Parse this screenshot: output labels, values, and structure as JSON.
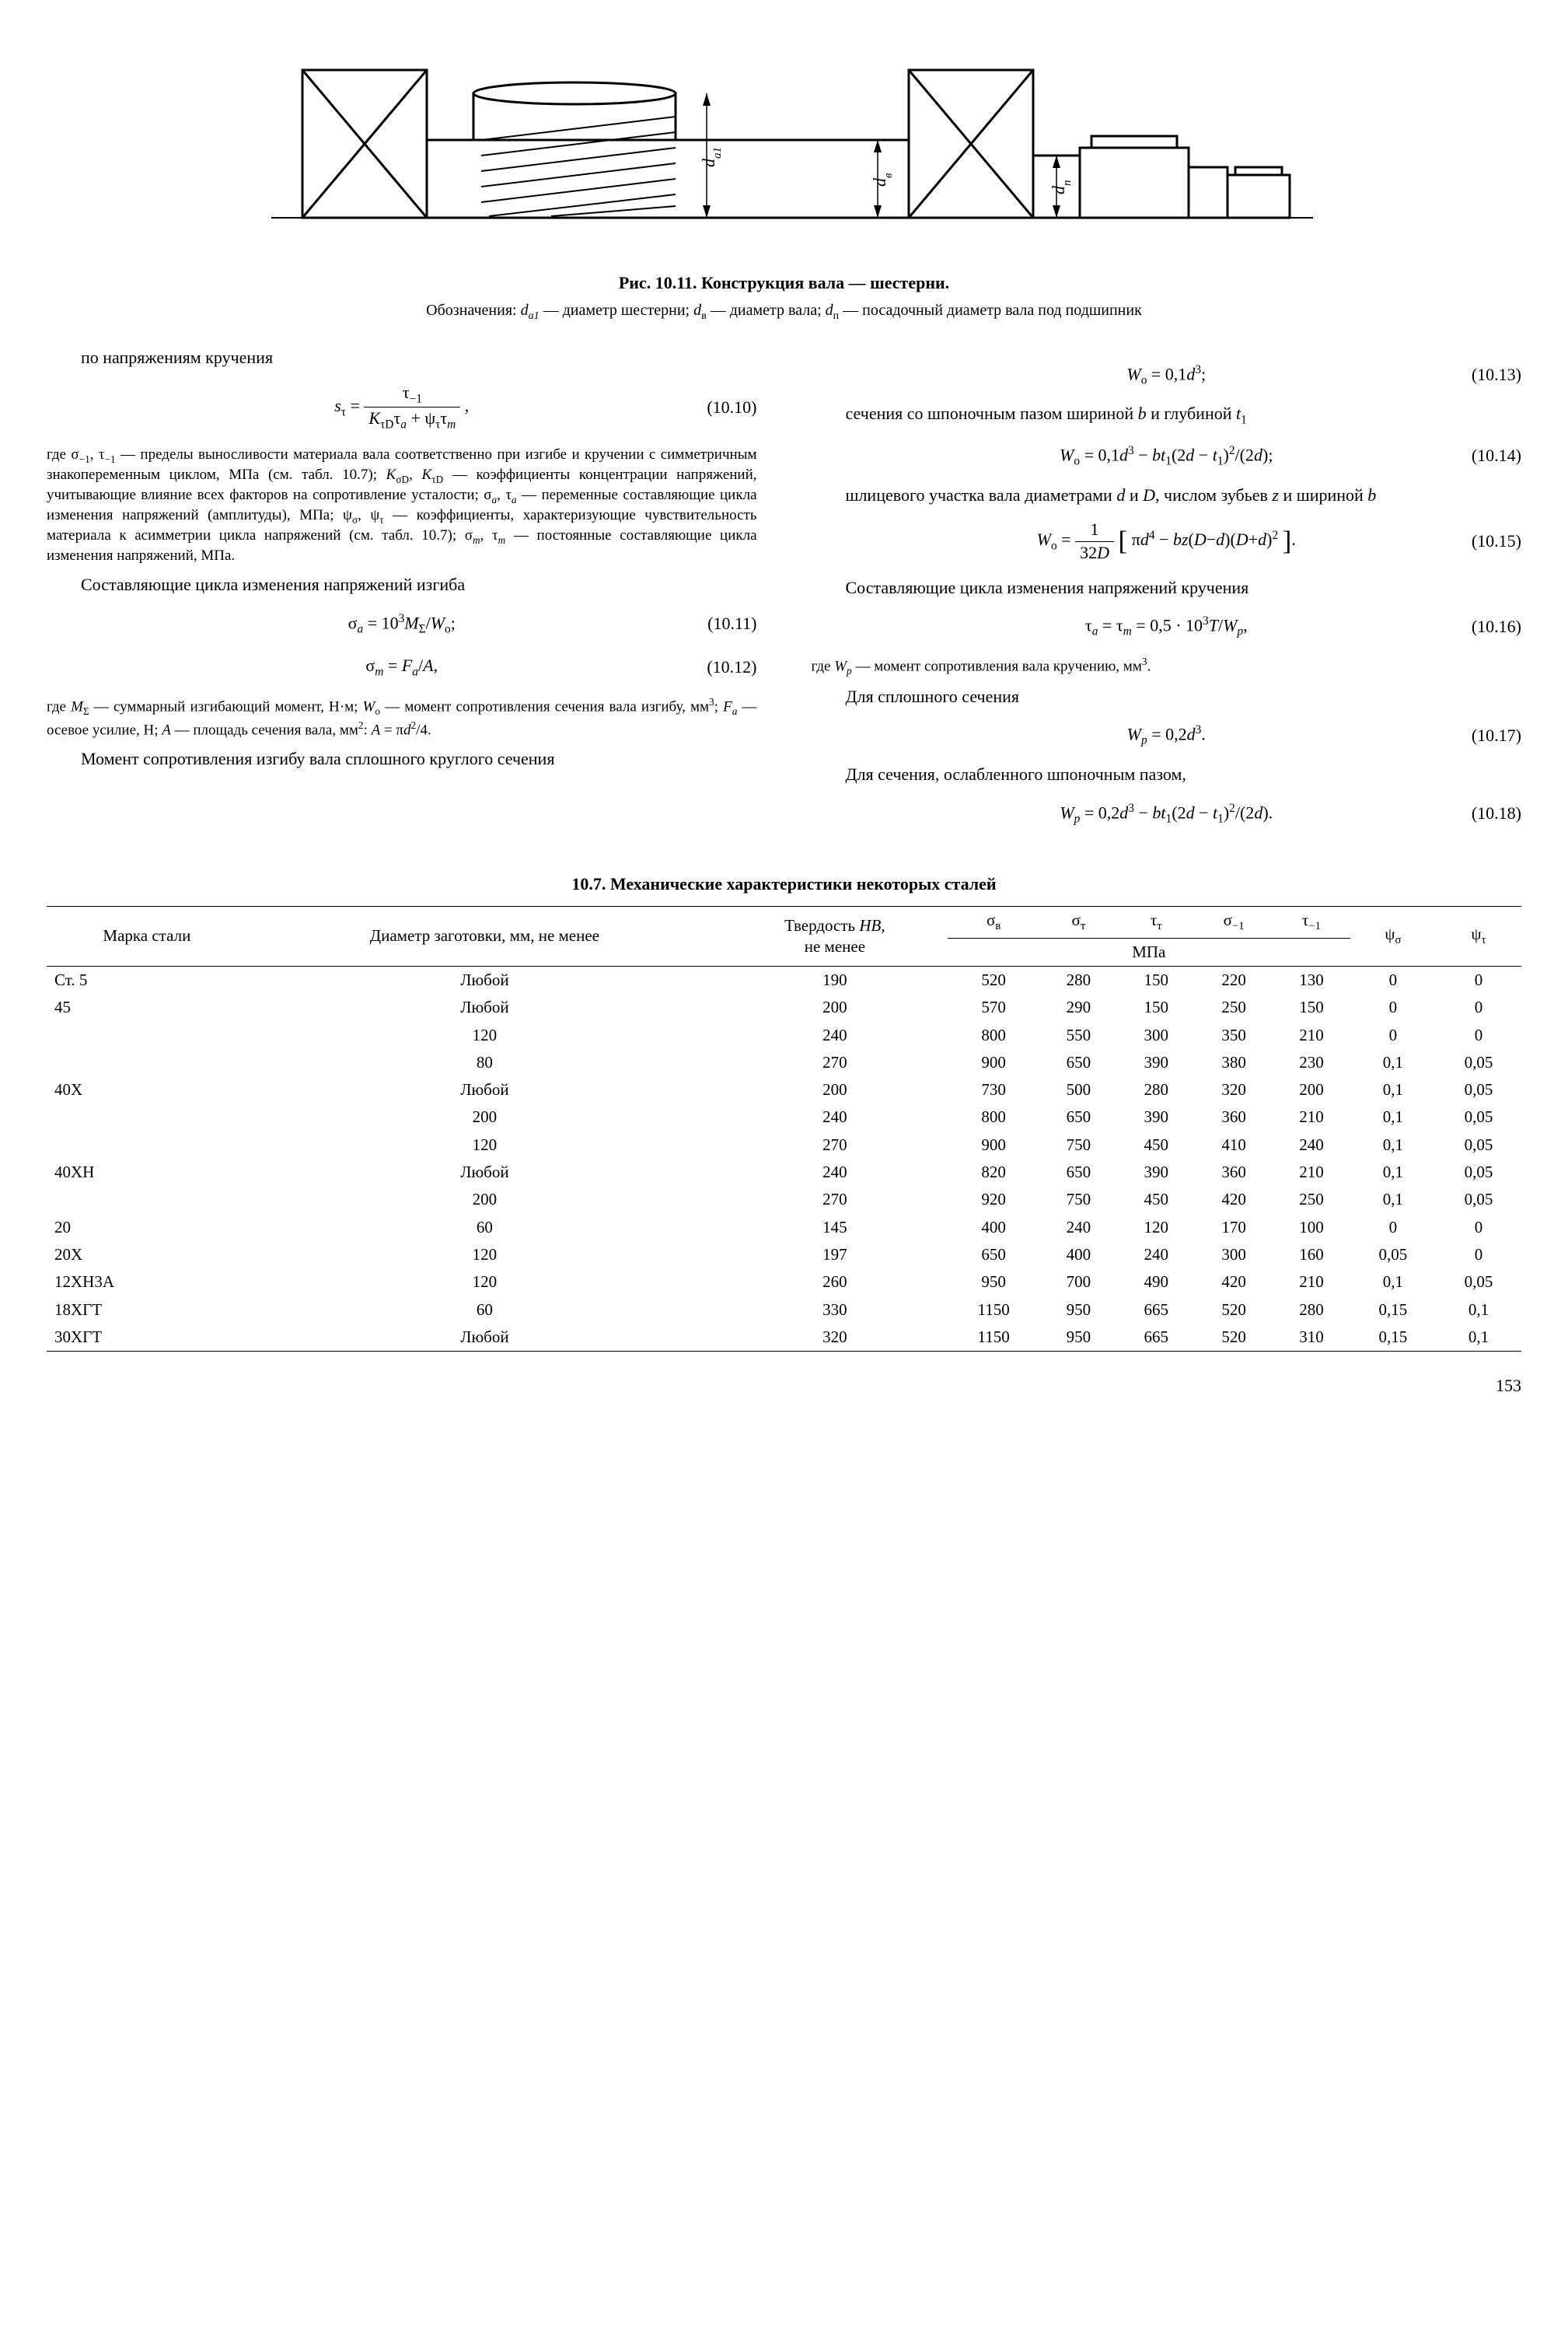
{
  "figure": {
    "caption_label": "Рис. 10.11.",
    "caption_text": "Конструкция вала — шестерни.",
    "legend": "Обозначения: d_a1 — диаметр шестерни; d_в — диаметр вала; d_п — посадочный диаметр вала под подшипник",
    "labels": {
      "d_a1": "d",
      "d_a1_sub": "a1",
      "d_v": "d",
      "d_v_sub": "в",
      "d_p": "d",
      "d_p_sub": "п"
    }
  },
  "left": {
    "h1": "по напряжениям кручения",
    "eq10_10_num": "(10.10)",
    "note1": "где σ₋₁, τ₋₁ — пределы выносливости материала вала соответственно при изгибе и кручении с симметричным знакопеременным циклом, МПа (см. табл. 10.7); K_σD, K_τD — коэффициенты концентрации напряжений, учитывающие влияние всех факторов на сопротивление усталости; σ_a, τ_a — переменные составляющие цикла изменения напряжений (амплитуды), МПа; ψ_σ, ψ_τ — коэффициенты, характеризующие чувствительность материала к асимметрии цикла напряжений (см. табл. 10.7); σ_m, τ_m — постоянные составляющие цикла изменения напряжений, МПа.",
    "h2": "Составляющие цикла изменения напряжений изгиба",
    "eq10_11_num": "(10.11)",
    "eq10_12_num": "(10.12)",
    "note2": "где M_Σ — суммарный изгибающий момент, Н·м; W_о — момент сопротивления сечения вала изгибу, мм³; F_а — осевое усилие, Н; A — площадь сечения вала, мм²: A = πd²/4.",
    "h3": "Момент сопротивления изгибу вала сплошного круглого сечения"
  },
  "right": {
    "eq10_13_num": "(10.13)",
    "p1a": "сечения со шпоночным пазом шириной ",
    "p1b": " и глубиной ",
    "eq10_14_num": "(10.14)",
    "p2a": "шлицевого участка вала диаметрами ",
    "p2b": " и ",
    "p2c": ", числом зубьев ",
    "p2d": " и шириной ",
    "eq10_15_num": "(10.15)",
    "p3": "Составляющие цикла изменения напряжений кручения",
    "eq10_16_num": "(10.16)",
    "note3": "где W_p — момент сопротивления вала кручению, мм³.",
    "p4": "Для сплошного сечения",
    "eq10_17_num": "(10.17)",
    "p5": "Для сечения, ослабленного шпоночным пазом,",
    "eq10_18_num": "(10.18)"
  },
  "table": {
    "title": "10.7. Механические характеристики некоторых сталей",
    "headers": {
      "c1": "Марка стали",
      "c2": "Диаметр заготовки, мм, не менее",
      "c3": "Твердость HB, не менее",
      "c4": "σ_в",
      "c5": "σ_т",
      "c6": "τ_т",
      "c7": "σ_-1",
      "c8": "τ_-1",
      "c9": "ψ_σ",
      "c10": "ψ_τ",
      "unit": "МПа"
    },
    "rows": [
      [
        "Ст. 5",
        "Любой",
        "190",
        "520",
        "280",
        "150",
        "220",
        "130",
        "0",
        "0"
      ],
      [
        "45",
        "Любой",
        "200",
        "570",
        "290",
        "150",
        "250",
        "150",
        "0",
        "0"
      ],
      [
        "",
        "120",
        "240",
        "800",
        "550",
        "300",
        "350",
        "210",
        "0",
        "0"
      ],
      [
        "",
        "80",
        "270",
        "900",
        "650",
        "390",
        "380",
        "230",
        "0,1",
        "0,05"
      ],
      [
        "40Х",
        "Любой",
        "200",
        "730",
        "500",
        "280",
        "320",
        "200",
        "0,1",
        "0,05"
      ],
      [
        "",
        "200",
        "240",
        "800",
        "650",
        "390",
        "360",
        "210",
        "0,1",
        "0,05"
      ],
      [
        "",
        "120",
        "270",
        "900",
        "750",
        "450",
        "410",
        "240",
        "0,1",
        "0,05"
      ],
      [
        "40ХН",
        "Любой",
        "240",
        "820",
        "650",
        "390",
        "360",
        "210",
        "0,1",
        "0,05"
      ],
      [
        "",
        "200",
        "270",
        "920",
        "750",
        "450",
        "420",
        "250",
        "0,1",
        "0,05"
      ],
      [
        "20",
        "60",
        "145",
        "400",
        "240",
        "120",
        "170",
        "100",
        "0",
        "0"
      ],
      [
        "20Х",
        "120",
        "197",
        "650",
        "400",
        "240",
        "300",
        "160",
        "0,05",
        "0"
      ],
      [
        "12ХН3А",
        "120",
        "260",
        "950",
        "700",
        "490",
        "420",
        "210",
        "0,1",
        "0,05"
      ],
      [
        "18ХГТ",
        "60",
        "330",
        "1150",
        "950",
        "665",
        "520",
        "280",
        "0,15",
        "0,1"
      ],
      [
        "30ХГТ",
        "Любой",
        "320",
        "1150",
        "950",
        "665",
        "520",
        "310",
        "0,15",
        "0,1"
      ]
    ]
  },
  "page_number": "153"
}
